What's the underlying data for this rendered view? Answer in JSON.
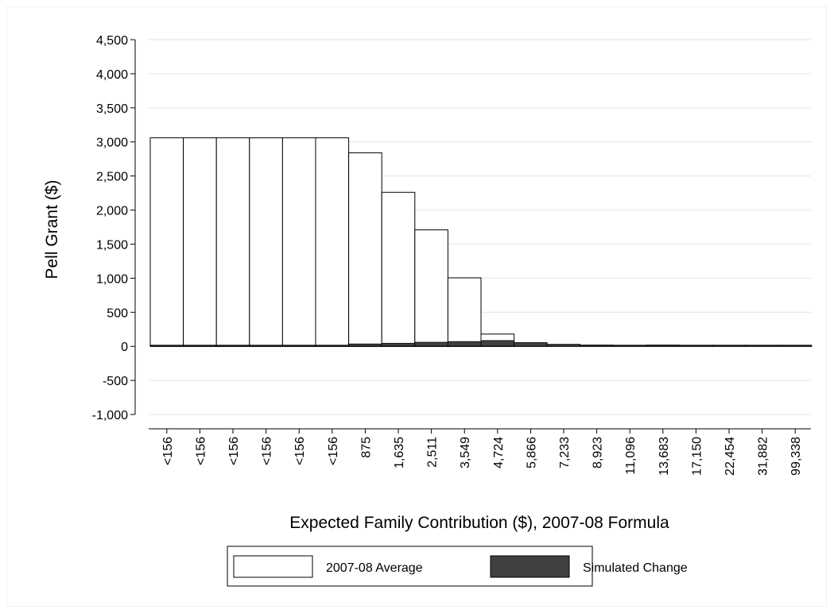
{
  "chart_data": {
    "type": "bar",
    "xlabel": "Expected Family Contribution ($), 2007-08 Formula",
    "ylabel": "Pell Grant ($)",
    "ylim": [
      -1000,
      4500
    ],
    "yticks": [
      -1000,
      -500,
      0,
      500,
      1000,
      1500,
      2000,
      2500,
      3000,
      3500,
      4000,
      4500
    ],
    "ytick_labels": [
      "-1,000",
      "-500",
      "0",
      "500",
      "1,000",
      "1,500",
      "2,000",
      "2,500",
      "3,000",
      "3,500",
      "4,000",
      "4,500"
    ],
    "grid": true,
    "legend_position": "bottom",
    "categories": [
      "<156",
      "<156",
      "<156",
      "<156",
      "<156",
      "<156",
      "875",
      "1,635",
      "2,511",
      "3,549",
      "4,724",
      "5,866",
      "7,233",
      "8,923",
      "11,096",
      "13,683",
      "17,150",
      "22,454",
      "31,882",
      "99,338"
    ],
    "series": [
      {
        "name": "2007-08 Average",
        "color": "#ffffff",
        "values": [
          3060,
          3060,
          3060,
          3060,
          3060,
          3060,
          2840,
          2260,
          1710,
          1005,
          180,
          0,
          0,
          0,
          0,
          0,
          0,
          0,
          0,
          0
        ]
      },
      {
        "name": "Simulated Change",
        "color": "#404040",
        "values": [
          5,
          5,
          5,
          5,
          5,
          5,
          35,
          45,
          60,
          70,
          85,
          55,
          30,
          20,
          10,
          20,
          5,
          5,
          5,
          5
        ]
      }
    ]
  }
}
